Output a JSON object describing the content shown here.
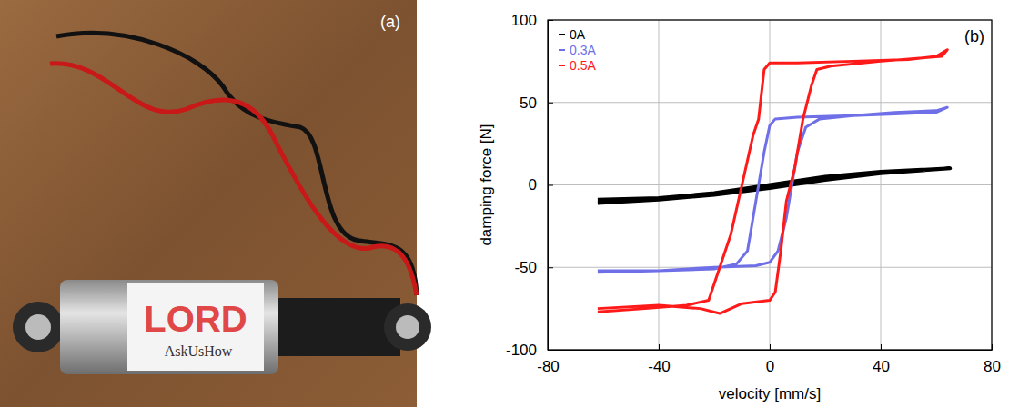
{
  "photo": {
    "label": "(a)",
    "brand": "LORD",
    "tagline": "AskUsHow"
  },
  "chart_data": {
    "type": "line",
    "panel_label": "(b)",
    "x_label": "velocity [mm/s]",
    "y_label": "damping force [N]",
    "xlim": [
      -80,
      80
    ],
    "ylim": [
      -100,
      100
    ],
    "xticks": [
      -80,
      -40,
      0,
      40,
      80
    ],
    "yticks": [
      -100,
      -50,
      0,
      50,
      100
    ],
    "grid": true,
    "legend": "upper left",
    "series": [
      {
        "name": "0A",
        "color": "#000000",
        "x": [
          -62,
          -40,
          -20,
          0,
          20,
          40,
          65,
          40,
          20,
          0,
          -20,
          -40,
          -62
        ],
        "values": [
          -11,
          -9,
          -6,
          -2,
          3,
          7,
          10,
          8,
          5,
          0,
          -5,
          -8,
          -9
        ]
      },
      {
        "name": "0.3A",
        "color": "#6f6fe8",
        "x": [
          -62,
          -40,
          -20,
          -5,
          0,
          3,
          6,
          8,
          10,
          13,
          18,
          30,
          45,
          60,
          64,
          60,
          45,
          30,
          10,
          2,
          0,
          -2,
          -4,
          -6,
          -8,
          -12,
          -20,
          -40,
          -62
        ],
        "values": [
          -52,
          -52,
          -50,
          -49,
          -47,
          -40,
          -20,
          0,
          20,
          35,
          40,
          42,
          44,
          45,
          47,
          44,
          43,
          42,
          41,
          40,
          36,
          20,
          0,
          -20,
          -40,
          -48,
          -51,
          -52,
          -53
        ]
      },
      {
        "name": "0.5A",
        "color": "#ff1a1a",
        "x": [
          -62,
          -40,
          -25,
          -18,
          -10,
          0,
          2,
          4,
          6,
          9,
          12,
          15,
          17,
          22,
          40,
          55,
          62,
          64,
          60,
          50,
          30,
          10,
          0,
          -2,
          -4,
          -6,
          -10,
          -14,
          -18,
          -22,
          -30,
          -45,
          -62
        ],
        "values": [
          -75,
          -73,
          -75,
          -78,
          -72,
          -70,
          -65,
          -40,
          -10,
          10,
          40,
          60,
          70,
          72,
          75,
          77,
          78,
          82,
          78,
          76,
          75,
          74,
          74,
          70,
          40,
          30,
          0,
          -30,
          -50,
          -70,
          -73,
          -75,
          -77
        ]
      }
    ]
  }
}
